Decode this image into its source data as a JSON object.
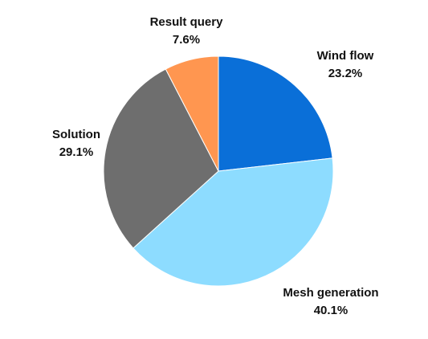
{
  "chart_data": {
    "type": "pie",
    "categories": [
      "Wind flow",
      "Mesh generation",
      "Solution",
      "Result query"
    ],
    "values": [
      23.2,
      40.1,
      29.1,
      7.6
    ],
    "value_labels": [
      "23.2%",
      "40.1%",
      "29.1%",
      "7.6%"
    ],
    "colors": [
      "#0a6fd8",
      "#8ddcff",
      "#6e6e6e",
      "#ff9650"
    ]
  }
}
